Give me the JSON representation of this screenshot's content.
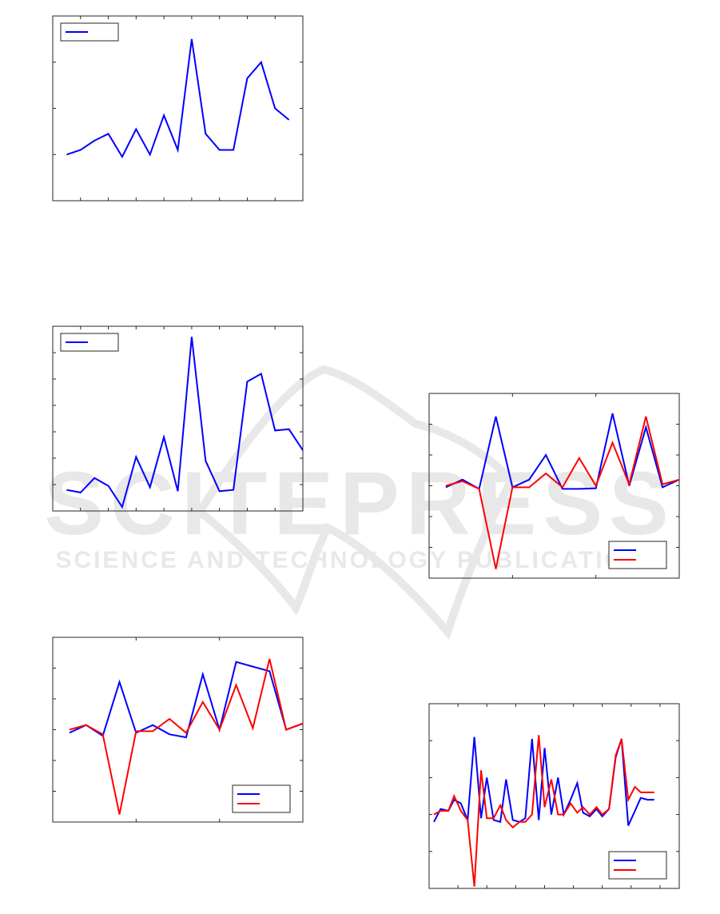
{
  "watermark": {
    "line1": "SCITEPRESS",
    "line2": "SCIENCE AND TECHNOLOGY PUBLICATIONS",
    "color": "#e3e3e3"
  },
  "colors": {
    "blue": "#0000ff",
    "red": "#ff0000",
    "axis": "#262626"
  },
  "chart_data": [
    {
      "id": "chart1",
      "type": "line",
      "title": "",
      "xlabel": "",
      "ylabel": "",
      "legend": "top-left",
      "xlim": [
        0,
        18
      ],
      "ylim": [
        0,
        4
      ],
      "xticks": [
        2,
        4,
        6,
        8,
        10,
        12,
        14,
        16
      ],
      "yticks": [
        1,
        2,
        3
      ],
      "series": [
        {
          "x": [
            1,
            2,
            3,
            4,
            5,
            6,
            7,
            8,
            9,
            10,
            11,
            12,
            13,
            14,
            15,
            16,
            17
          ],
          "values": [
            1.0,
            1.1,
            1.3,
            1.45,
            0.95,
            1.55,
            1.0,
            1.85,
            1.1,
            3.5,
            1.45,
            1.1,
            1.1,
            2.65,
            3.0,
            2.0,
            1.75
          ],
          "color": "#0000ff"
        }
      ]
    },
    {
      "id": "chart2",
      "type": "line",
      "title": "",
      "xlabel": "",
      "ylabel": "",
      "legend": "top-left",
      "xlim": [
        0,
        18
      ],
      "ylim": [
        0,
        7
      ],
      "xticks": [
        2,
        4,
        6,
        8,
        10,
        12,
        14,
        16
      ],
      "yticks": [
        1,
        2,
        3,
        4,
        5,
        6
      ],
      "series": [
        {
          "x": [
            1,
            2,
            3,
            4,
            5,
            6,
            7,
            8,
            9,
            10,
            11,
            12,
            13,
            14,
            15,
            16,
            17,
            18
          ],
          "values": [
            0.8,
            0.7,
            1.25,
            0.95,
            0.15,
            2.05,
            0.9,
            2.8,
            0.75,
            6.6,
            1.9,
            0.75,
            0.8,
            4.9,
            5.2,
            3.05,
            3.1,
            2.3
          ],
          "color": "#0000ff"
        }
      ]
    },
    {
      "id": "chart3",
      "type": "line",
      "title": "",
      "xlabel": "",
      "ylabel": "",
      "legend": "bottom-right",
      "xlim": [
        0,
        3
      ],
      "ylim": [
        -3,
        3
      ],
      "xticks": [
        1,
        2
      ],
      "yticks": [
        -2,
        -1,
        0,
        1,
        2
      ],
      "series": [
        {
          "x": [
            0.2,
            0.4,
            0.6,
            0.8,
            1.0,
            1.2,
            1.4,
            1.6,
            1.8,
            2.0,
            2.2,
            2.4,
            2.6,
            2.8,
            3.0
          ],
          "values": [
            -0.1,
            0.15,
            -0.2,
            1.55,
            -0.1,
            0.15,
            -0.15,
            -0.25,
            1.8,
            0.0,
            2.2,
            2.05,
            1.9,
            0.0,
            0.2
          ],
          "color": "#0000ff"
        },
        {
          "x": [
            0.2,
            0.4,
            0.6,
            0.8,
            1.0,
            1.2,
            1.4,
            1.6,
            1.8,
            2.0,
            2.2,
            2.4,
            2.6,
            2.8,
            3.0
          ],
          "values": [
            0.0,
            0.15,
            -0.15,
            -2.75,
            -0.05,
            -0.05,
            0.35,
            -0.1,
            0.9,
            0.0,
            1.45,
            0.05,
            2.3,
            0.0,
            0.2
          ],
          "color": "#ff0000"
        }
      ]
    },
    {
      "id": "chart4",
      "type": "line",
      "title": "",
      "xlabel": "",
      "ylabel": "",
      "legend": "bottom-right",
      "xlim": [
        0,
        3
      ],
      "ylim": [
        -3,
        3
      ],
      "xticks": [
        1,
        2
      ],
      "yticks": [
        -2,
        -1,
        0,
        1,
        2
      ],
      "series": [
        {
          "x": [
            0.2,
            0.4,
            0.6,
            0.8,
            1.0,
            1.2,
            1.4,
            1.6,
            1.8,
            2.0,
            2.2,
            2.4,
            2.6,
            2.8,
            3.0
          ],
          "values": [
            -0.05,
            0.2,
            -0.1,
            2.25,
            -0.05,
            0.2,
            1.0,
            -0.1,
            -0.1,
            -0.08,
            2.35,
            0.0,
            1.9,
            -0.05,
            0.2
          ],
          "color": "#0000ff"
        },
        {
          "x": [
            0.2,
            0.4,
            0.6,
            0.8,
            1.0,
            1.2,
            1.4,
            1.6,
            1.8,
            2.0,
            2.2,
            2.4,
            2.6,
            2.8,
            3.0
          ],
          "values": [
            0.0,
            0.15,
            -0.1,
            -2.7,
            -0.05,
            -0.05,
            0.4,
            -0.05,
            0.9,
            0.0,
            1.4,
            0.05,
            2.25,
            0.05,
            0.2
          ],
          "color": "#ff0000"
        }
      ]
    },
    {
      "id": "chart5",
      "type": "line",
      "title": "",
      "xlabel": "",
      "ylabel": "",
      "legend": "bottom-right",
      "xlim": [
        0,
        26
      ],
      "ylim": [
        -2,
        3
      ],
      "xticks": [
        3,
        6,
        9,
        12,
        15,
        18,
        21,
        24
      ],
      "yticks": [
        -1,
        0,
        1,
        2
      ],
      "series": [
        {
          "x": [
            0.5,
            1.2,
            2.0,
            2.6,
            3.3,
            4.0,
            4.7,
            5.4,
            6.0,
            6.7,
            7.4,
            8.0,
            8.7,
            9.4,
            10.0,
            10.7,
            11.4,
            12.0,
            12.7,
            13.4,
            14.0,
            14.7,
            15.4,
            16.0,
            16.7,
            17.4,
            18.0,
            18.7,
            19.4,
            20.0,
            20.7,
            21.4,
            22.0,
            22.7,
            23.4
          ],
          "values": [
            -0.2,
            0.15,
            0.1,
            0.4,
            0.3,
            -0.15,
            2.1,
            -0.1,
            1.0,
            -0.15,
            -0.2,
            0.95,
            -0.15,
            -0.2,
            -0.1,
            2.05,
            -0.15,
            1.8,
            0.0,
            1.0,
            0.0,
            0.4,
            0.85,
            0.05,
            -0.05,
            0.15,
            -0.05,
            0.15,
            1.55,
            2.05,
            -0.3,
            0.1,
            0.45,
            0.4,
            0.4
          ],
          "color": "#0000ff"
        },
        {
          "x": [
            0.5,
            1.2,
            2.0,
            2.6,
            3.3,
            4.0,
            4.7,
            5.4,
            6.0,
            6.7,
            7.4,
            8.0,
            8.7,
            9.4,
            10.0,
            10.7,
            11.4,
            12.0,
            12.7,
            13.4,
            14.0,
            14.7,
            15.4,
            16.0,
            16.7,
            17.4,
            18.0,
            18.7,
            19.4,
            20.0,
            20.7,
            21.4,
            22.0,
            22.7,
            23.4
          ],
          "values": [
            0.0,
            0.1,
            0.1,
            0.5,
            0.1,
            -0.15,
            -1.95,
            1.2,
            -0.1,
            -0.1,
            0.25,
            -0.15,
            -0.35,
            -0.2,
            -0.2,
            0.0,
            2.15,
            0.2,
            0.95,
            0.0,
            0.0,
            0.3,
            0.05,
            0.2,
            0.0,
            0.2,
            0.0,
            0.15,
            1.6,
            2.05,
            0.4,
            0.75,
            0.6,
            0.6,
            0.6
          ],
          "color": "#ff0000"
        }
      ]
    }
  ]
}
